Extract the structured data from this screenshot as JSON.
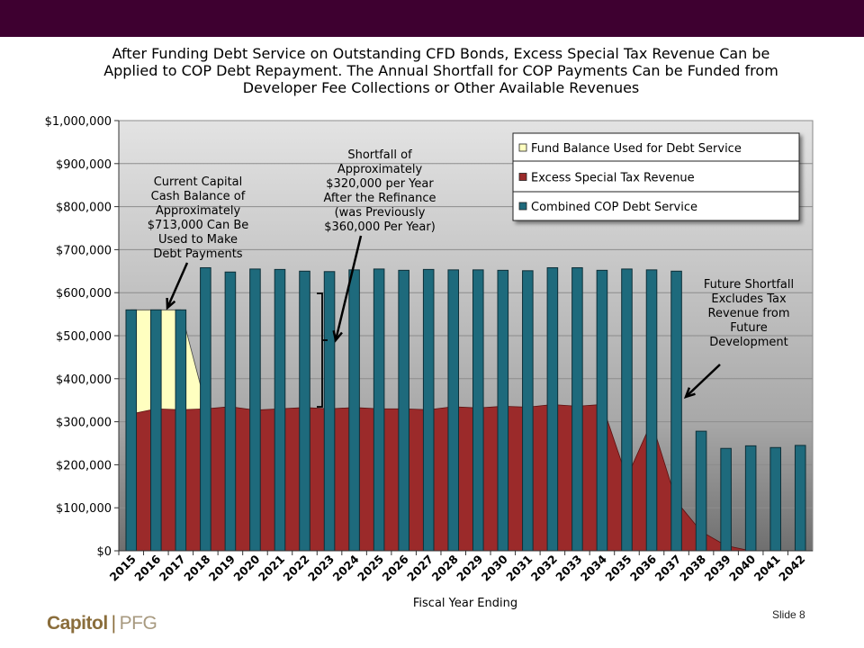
{
  "slide": {
    "title": "After Funding Debt Service on Outstanding CFD Bonds, Excess Special Tax Revenue Can be Applied to COP Debt Repayment.  The Annual Shortfall for COP Payments Can be Funded from Developer Fee Collections or Other Available Revenues",
    "slide_number": "Slide 8",
    "logo_main": "Capitol",
    "logo_sep": "|",
    "logo_sub": "PFG"
  },
  "chart_data": {
    "type": "bar",
    "title": "After Funding Debt Service on Outstanding CFD Bonds, Excess Special Tax Revenue Can be Applied to COP Debt Repayment.  The Annual Shortfall for COP Payments Can be Funded from Developer Fee Collections or Other Available Revenues",
    "xlabel": "Fiscal Year Ending",
    "ylabel": "",
    "ylim": [
      0,
      1000000
    ],
    "yticks": [
      0,
      100000,
      200000,
      300000,
      400000,
      500000,
      600000,
      700000,
      800000,
      900000,
      1000000
    ],
    "ytick_labels": [
      "$0",
      "$100,000",
      "$200,000",
      "$300,000",
      "$400,000",
      "$500,000",
      "$600,000",
      "$700,000",
      "$800,000",
      "$900,000",
      "$1,000,000"
    ],
    "categories": [
      "2015",
      "2016",
      "2017",
      "2018",
      "2019",
      "2020",
      "2021",
      "2022",
      "2023",
      "2024",
      "2025",
      "2026",
      "2027",
      "2028",
      "2029",
      "2030",
      "2031",
      "2032",
      "2033",
      "2034",
      "2035",
      "2036",
      "2037",
      "2038",
      "2039",
      "2040",
      "2041",
      "2042"
    ],
    "grid": true,
    "legend_position": "top-right",
    "series": [
      {
        "name": "Fund Balance Used for Debt Service",
        "kind": "area",
        "color": "#ffffc0",
        "values": [
          560000,
          560000,
          560000,
          340000,
          0,
          0,
          0,
          0,
          0,
          0,
          0,
          0,
          0,
          0,
          0,
          0,
          0,
          0,
          0,
          0,
          0,
          0,
          0,
          0,
          0,
          0,
          0,
          0
        ]
      },
      {
        "name": "Excess Special Tax Revenue",
        "kind": "area",
        "color": "#9b2a2a",
        "values": [
          318000,
          330000,
          328000,
          330000,
          335000,
          327000,
          330000,
          333000,
          330000,
          333000,
          330000,
          330000,
          328000,
          335000,
          332000,
          336000,
          334000,
          340000,
          336000,
          340000,
          170000,
          300000,
          115000,
          45000,
          12000,
          0,
          0,
          0
        ]
      },
      {
        "name": "Combined COP Debt Service",
        "kind": "bar",
        "color": "#1e6a7c",
        "values": [
          560000,
          560000,
          560000,
          658000,
          648000,
          655000,
          654000,
          650000,
          649000,
          653000,
          655000,
          652000,
          654000,
          653000,
          653000,
          652000,
          651000,
          658000,
          658000,
          652000,
          655000,
          653000,
          650000,
          278000,
          238000,
          244000,
          240000,
          245000
        ]
      }
    ],
    "annotations": [
      {
        "text": [
          "Current Capital",
          "Cash Balance of",
          "Approximately",
          "$713,000 Can Be",
          "Used to Make",
          "Debt Payments"
        ]
      },
      {
        "text": [
          "Shortfall of",
          "Approximately",
          "$320,000 per Year",
          "After the Refinance",
          "(was Previously",
          "$360,000 Per Year)"
        ]
      },
      {
        "text": [
          "Future Shortfall",
          "Excludes Tax",
          "Revenue from",
          "Future",
          "Development"
        ]
      }
    ]
  }
}
